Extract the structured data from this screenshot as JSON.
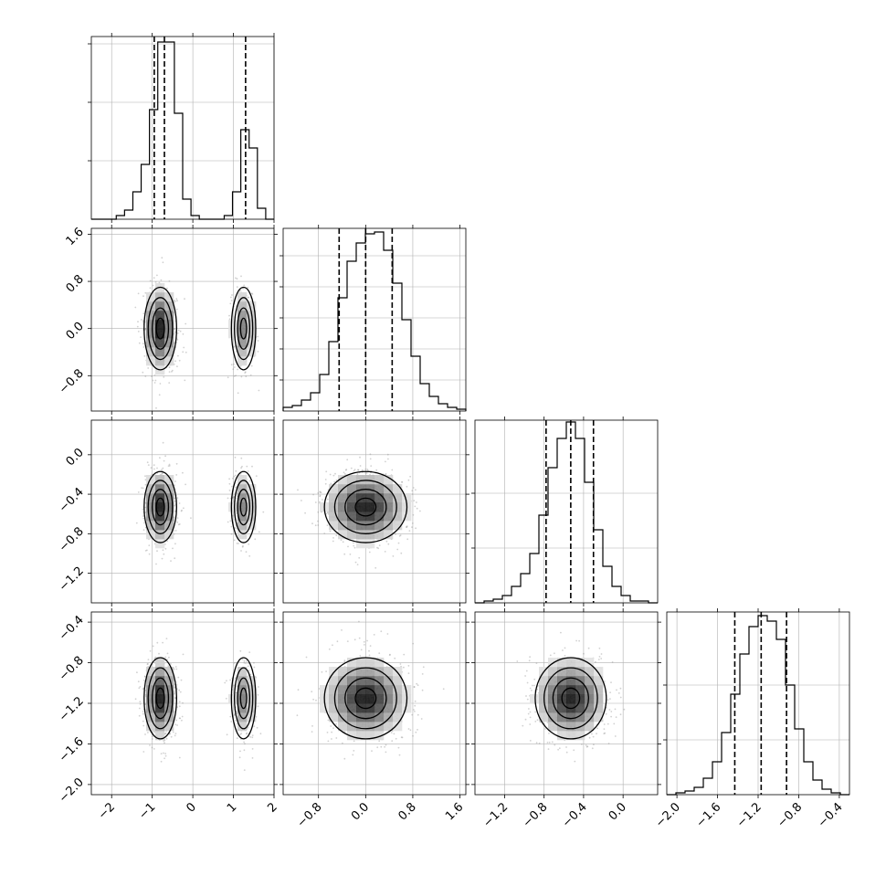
{
  "chart_data": {
    "type": "corner",
    "parameters": 4,
    "grid": true,
    "colors": {
      "ink": "#000000",
      "grid": "#b0b0b0",
      "scatter": "#9a9a9a"
    },
    "params": [
      {
        "range": [
          -2.5,
          2.0
        ],
        "ticks": [
          -2,
          -1,
          0,
          1,
          2
        ],
        "tick_labels": [
          "−2",
          "−1",
          "0",
          "1",
          "2"
        ],
        "quantiles": [
          -0.95,
          -0.7,
          1.3
        ],
        "hist_bins": [
          0,
          0,
          0,
          0.02,
          0.05,
          0.15,
          0.3,
          0.6,
          0.97,
          0.97,
          0.58,
          0.11,
          0.02,
          0,
          0,
          0,
          0.02,
          0.15,
          0.49,
          0.39,
          0.06,
          0
        ],
        "hist_yticks": [
          0.32,
          0.64,
          0.96
        ]
      },
      {
        "range": [
          -1.4,
          1.7
        ],
        "ticks": [
          -0.8,
          0.0,
          0.8,
          1.6
        ],
        "tick_labels": [
          "−0.8",
          "0.0",
          "0.8",
          "1.6"
        ],
        "quantiles": [
          -0.45,
          0.0,
          0.45
        ],
        "hist_bins": [
          0.02,
          0.03,
          0.06,
          0.1,
          0.2,
          0.38,
          0.62,
          0.82,
          0.92,
          0.97,
          0.98,
          0.88,
          0.7,
          0.5,
          0.3,
          0.15,
          0.08,
          0.04,
          0.02,
          0.01
        ],
        "hist_yticks": [
          0.17,
          0.34,
          0.51,
          0.68,
          0.85
        ]
      },
      {
        "range": [
          -1.5,
          0.35
        ],
        "ticks": [
          -1.2,
          -0.8,
          -0.4,
          0.0
        ],
        "tick_labels": [
          "−1.2",
          "−0.8",
          "−0.4",
          "0.0"
        ],
        "quantiles": [
          -0.78,
          -0.53,
          -0.3
        ],
        "hist_bins": [
          0,
          0.01,
          0.02,
          0.04,
          0.09,
          0.16,
          0.27,
          0.48,
          0.74,
          0.9,
          0.99,
          0.9,
          0.66,
          0.4,
          0.2,
          0.09,
          0.04,
          0.01,
          0.01,
          0
        ],
        "hist_yticks": [
          0.3,
          0.6
        ]
      },
      {
        "range": [
          -2.1,
          -0.3
        ],
        "ticks": [
          -2.0,
          -1.6,
          -1.2,
          -0.8,
          -0.4
        ],
        "tick_labels": [
          "−2.0",
          "−1.6",
          "−1.2",
          "−0.8",
          "−0.4"
        ],
        "quantiles": [
          -1.43,
          -1.17,
          -0.92
        ],
        "hist_bins": [
          0,
          0.01,
          0.02,
          0.04,
          0.09,
          0.18,
          0.34,
          0.55,
          0.77,
          0.92,
          0.98,
          0.95,
          0.85,
          0.6,
          0.36,
          0.18,
          0.08,
          0.03,
          0.01,
          0
        ],
        "hist_yticks": [
          0.3,
          0.6
        ]
      }
    ],
    "modes": {
      "0": [
        {
          "c": -0.8,
          "s": 0.2,
          "w": 0.7
        },
        {
          "c": 1.25,
          "s": 0.15,
          "w": 0.3
        }
      ],
      "1": [
        {
          "c": 0.0,
          "s": 0.35,
          "w": 1
        }
      ],
      "2": [
        {
          "c": -0.53,
          "s": 0.18,
          "w": 1
        }
      ],
      "3": [
        {
          "c": -1.15,
          "s": 0.2,
          "w": 1
        }
      ]
    }
  }
}
